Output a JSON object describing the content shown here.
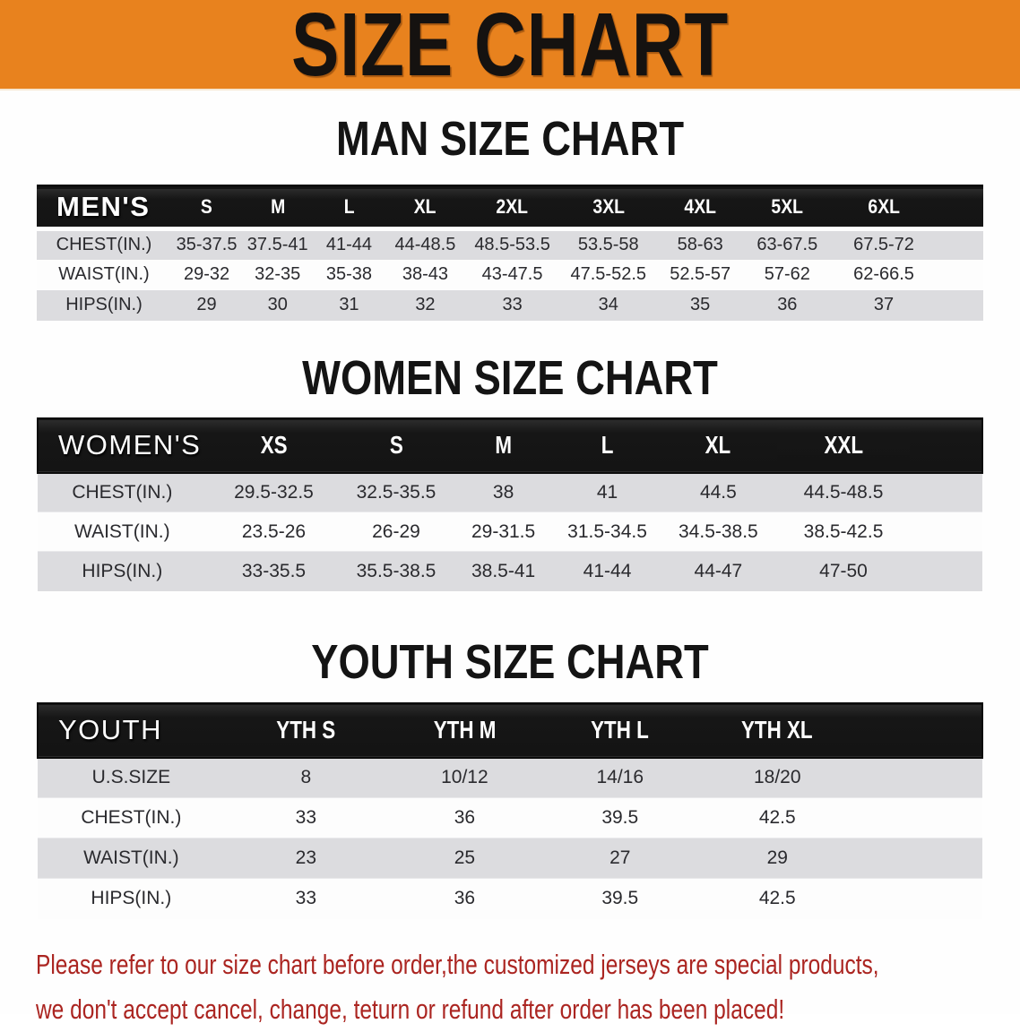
{
  "banner": {
    "title": "SIZE CHART",
    "bg": "#e8821e"
  },
  "sections": [
    {
      "heading": "MAN SIZE CHART",
      "header_label": "MEN'S",
      "columns": [
        "S",
        "M",
        "L",
        "XL",
        "2XL",
        "3XL",
        "4XL",
        "5XL",
        "6XL"
      ],
      "rows": [
        {
          "label": "CHEST(IN.)",
          "values": [
            "35-37.5",
            "37.5-41",
            "41-44",
            "44-48.5",
            "48.5-53.5",
            "53.5-58",
            "58-63",
            "63-67.5",
            "67.5-72"
          ]
        },
        {
          "label": "WAIST(IN.)",
          "values": [
            "29-32",
            "32-35",
            "35-38",
            "38-43",
            "43-47.5",
            "47.5-52.5",
            "52.5-57",
            "57-62",
            "62-66.5"
          ]
        },
        {
          "label": "HIPS(IN.)",
          "values": [
            "29",
            "30",
            "31",
            "32",
            "33",
            "34",
            "35",
            "36",
            "37"
          ]
        }
      ]
    },
    {
      "heading": "WOMEN SIZE CHART",
      "header_label": "WOMEN'S",
      "columns": [
        "XS",
        "S",
        "M",
        "L",
        "XL",
        "XXL"
      ],
      "rows": [
        {
          "label": "CHEST(IN.)",
          "values": [
            "29.5-32.5",
            "32.5-35.5",
            "38",
            "41",
            "44.5",
            "44.5-48.5"
          ]
        },
        {
          "label": "WAIST(IN.)",
          "values": [
            "23.5-26",
            "26-29",
            "29-31.5",
            "31.5-34.5",
            "34.5-38.5",
            "38.5-42.5"
          ]
        },
        {
          "label": "HIPS(IN.)",
          "values": [
            "33-35.5",
            "35.5-38.5",
            "38.5-41",
            "41-44",
            "44-47",
            "47-50"
          ]
        }
      ]
    },
    {
      "heading": "YOUTH SIZE CHART",
      "header_label": "YOUTH",
      "columns": [
        "YTH S",
        "YTH M",
        "YTH L",
        "YTH XL"
      ],
      "rows": [
        {
          "label": "U.S.SIZE",
          "values": [
            "8",
            "10/12",
            "14/16",
            "18/20"
          ]
        },
        {
          "label": "CHEST(IN.)",
          "values": [
            "33",
            "36",
            "39.5",
            "42.5"
          ]
        },
        {
          "label": "WAIST(IN.)",
          "values": [
            "23",
            "25",
            "27",
            "29"
          ]
        },
        {
          "label": "HIPS(IN.)",
          "values": [
            "33",
            "36",
            "39.5",
            "42.5"
          ]
        }
      ]
    }
  ],
  "disclaimer": {
    "line1": "Please refer to our size chart before order,the customized jerseys are special products,",
    "line2": "we don't accept cancel, change, teturn or refund after order has been placed!",
    "color": "#ab2521"
  },
  "colors": {
    "banner_orange": "#e8821e",
    "header_bar_black": "#161616",
    "stripe_gray": "#dcdcdf",
    "disclaimer_red": "#ab2521",
    "heading_black": "#141414"
  }
}
